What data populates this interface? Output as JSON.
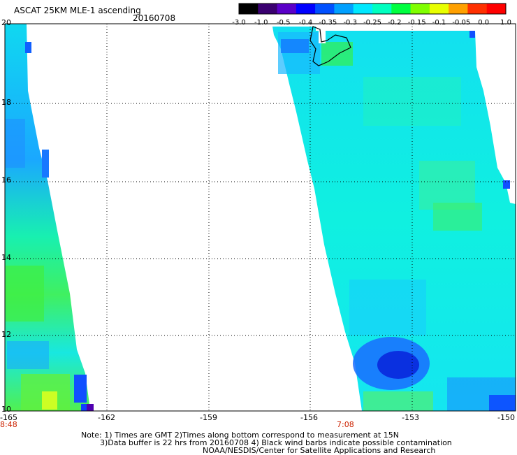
{
  "header": {
    "title": "ASCAT 25KM MLE-1 ascending",
    "date": "20160708"
  },
  "colorbar": {
    "labels": [
      "-3.0",
      "-1.0",
      "-0.5",
      "-0.4",
      "-0.35",
      "-0.3",
      "-0.25",
      "-0.2",
      "-0.15",
      "-0.1",
      "-0.05",
      "0.0",
      "1.0"
    ],
    "colors": [
      "#000000",
      "#3a0070",
      "#5a00c8",
      "#0000ff",
      "#0050ff",
      "#00a0ff",
      "#00e8ff",
      "#00ffc0",
      "#00ff40",
      "#80ff00",
      "#e8ff00",
      "#ffa000",
      "#ff3000",
      "#ff0000"
    ]
  },
  "map": {
    "lat_labels": [
      "20",
      "18",
      "16",
      "14",
      "12",
      "10"
    ],
    "lon_labels": [
      "-165",
      "-162",
      "-159",
      "-156",
      "-153",
      "-150"
    ],
    "time_labels": [
      "8:48",
      "7:08"
    ]
  },
  "notes": {
    "line1": "Note: 1) Times are GMT 2)Times along bottom correspond to measurement at 15N",
    "line2": "3)Data buffer is 22 hrs from 20160708 4) Black wind barbs indicate possible contamination",
    "line3": "NOAA/NESDIS/Center for Satellite Applications and Research"
  }
}
